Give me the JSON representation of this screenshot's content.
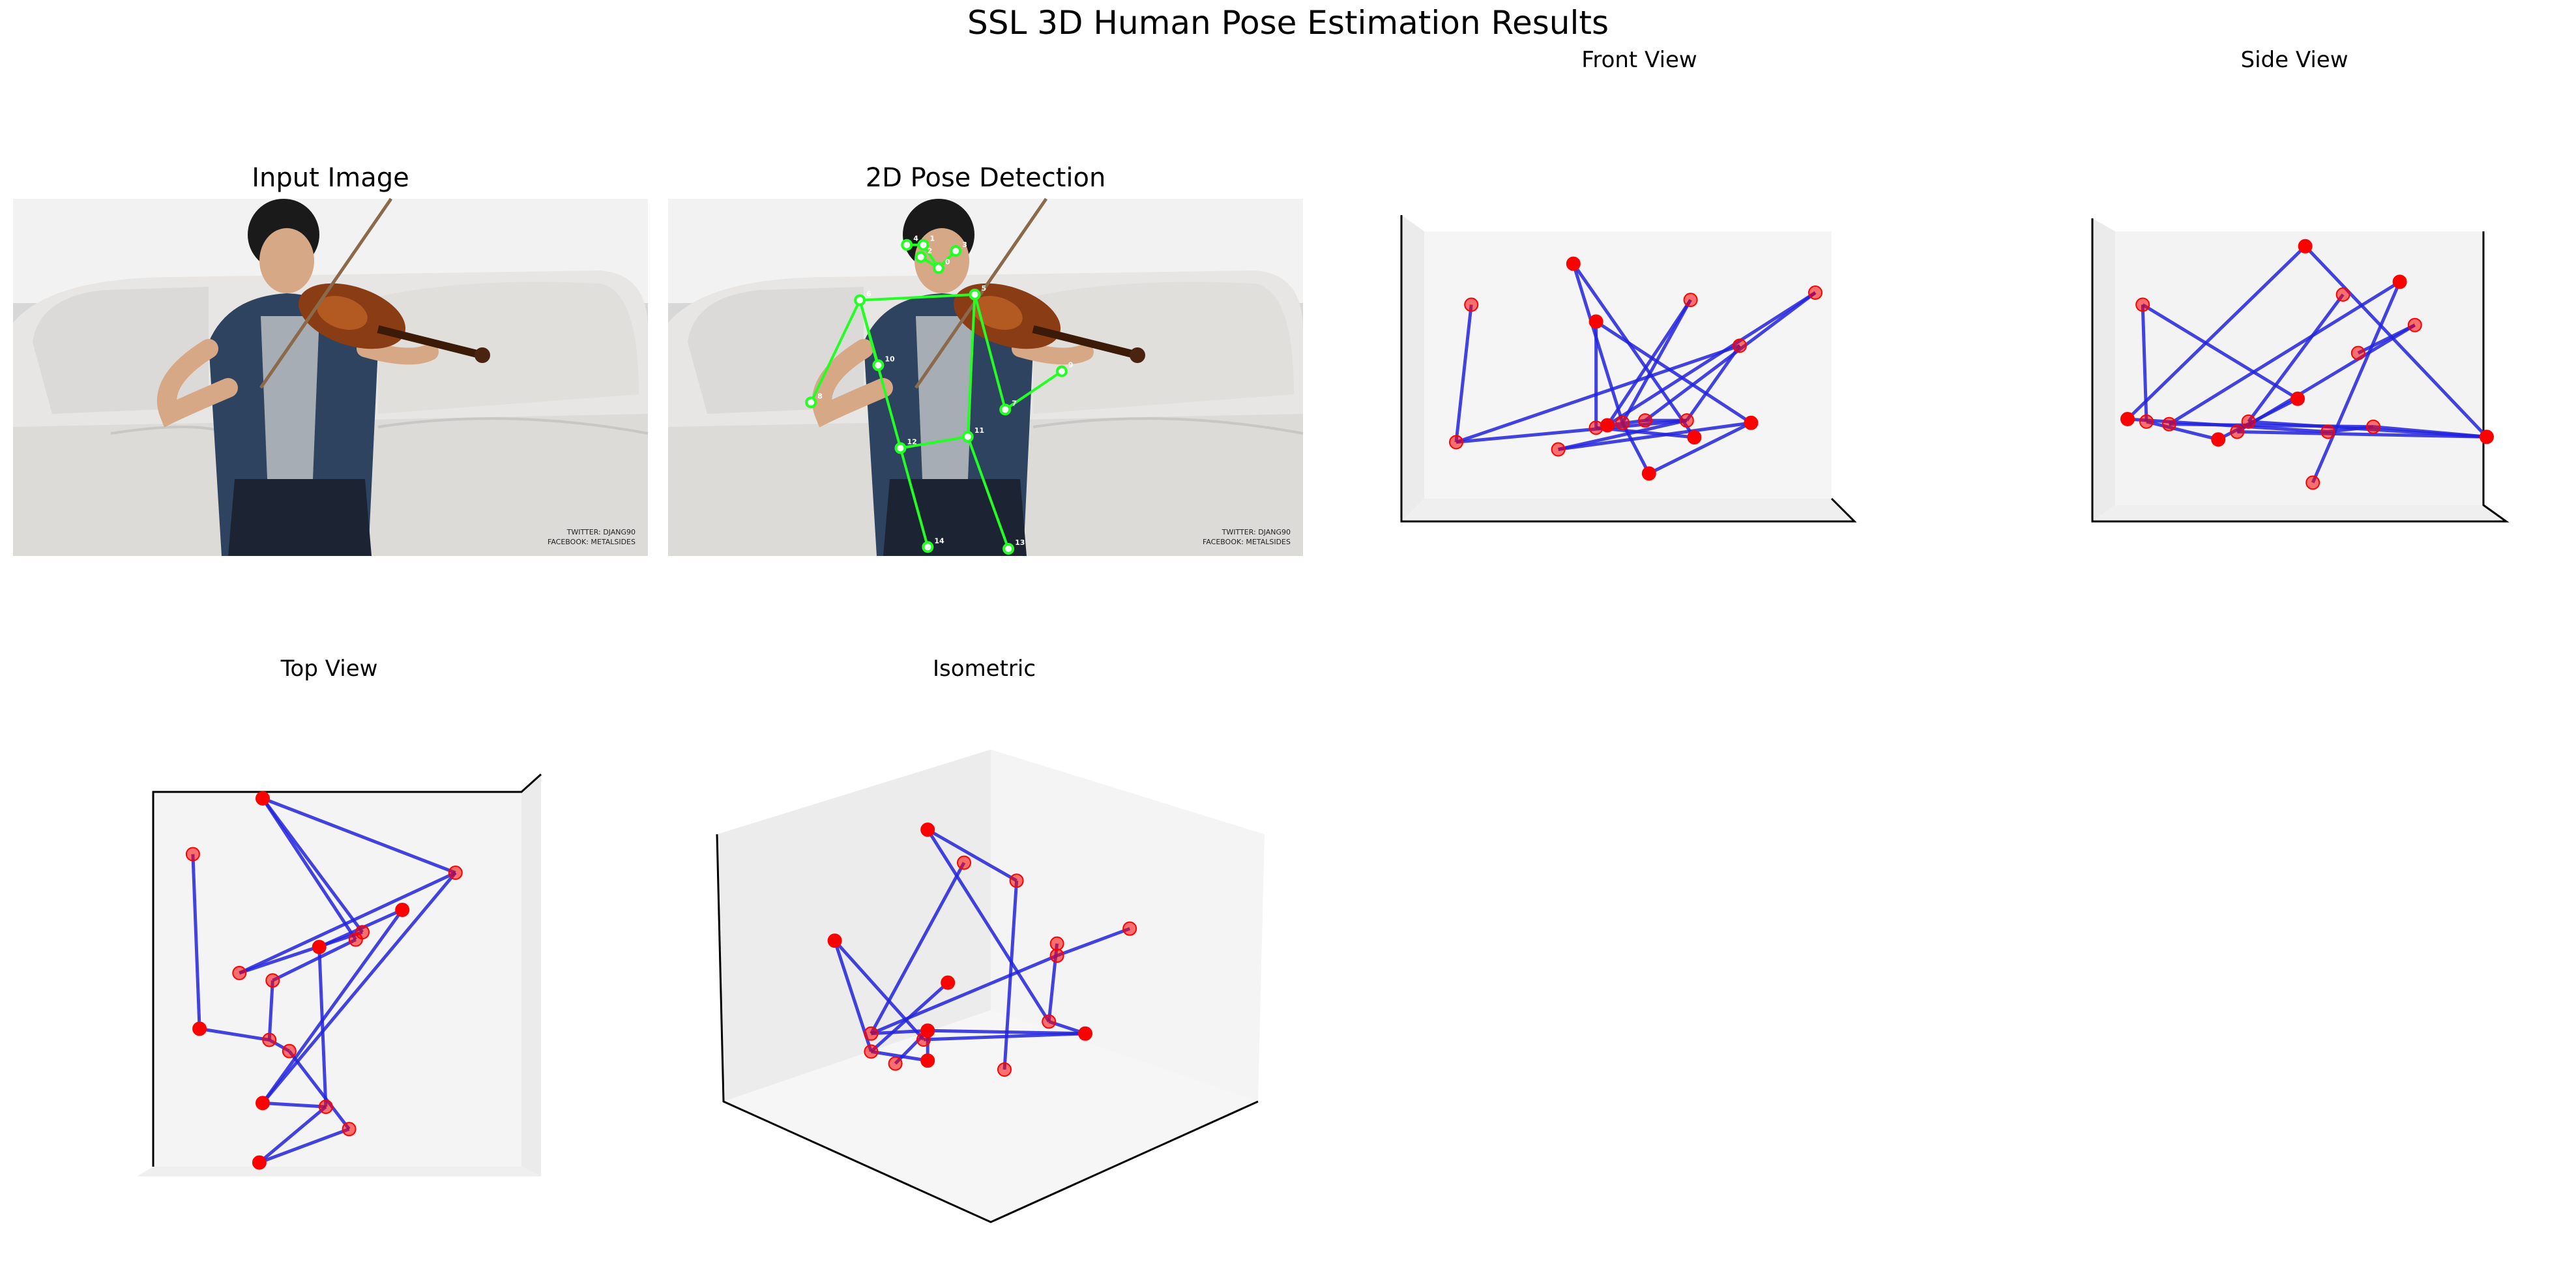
{
  "figure": {
    "title": "SSL 3D Human Pose Estimation Results",
    "panels": {
      "input_image": "Input Image",
      "pose_2d": "2D Pose Detection",
      "front": "Front View",
      "side": "Side View",
      "top": "Top View",
      "isometric": "Isometric"
    },
    "watermark": [
      "TWITTER: DJANG90",
      "FACEBOOK: METALSIDES"
    ]
  },
  "colors": {
    "skeleton_2d": "#22ff22",
    "skeleton_3d": "#2222dd",
    "joint_3d": "#ff0000",
    "pane": "#f2f2f2"
  },
  "chart_data": [
    {
      "type": "image",
      "title": "Input Image",
      "content": "person seated on a white sofa playing a violin"
    },
    {
      "type": "scatter",
      "title": "2D Pose Detection",
      "description_source": "keypoints overlaid on photo",
      "keypoints": [
        {
          "id": 0,
          "x": 0.426,
          "y": 0.194
        },
        {
          "id": 1,
          "x": 0.402,
          "y": 0.129
        },
        {
          "id": 2,
          "x": 0.398,
          "y": 0.163
        },
        {
          "id": 3,
          "x": 0.453,
          "y": 0.146
        },
        {
          "id": 4,
          "x": 0.376,
          "y": 0.129
        },
        {
          "id": 5,
          "x": 0.483,
          "y": 0.268
        },
        {
          "id": 6,
          "x": 0.302,
          "y": 0.284
        },
        {
          "id": 7,
          "x": 0.531,
          "y": 0.59
        },
        {
          "id": 8,
          "x": 0.225,
          "y": 0.57
        },
        {
          "id": 9,
          "x": 0.62,
          "y": 0.483
        },
        {
          "id": 10,
          "x": 0.331,
          "y": 0.466
        },
        {
          "id": 11,
          "x": 0.472,
          "y": 0.666
        },
        {
          "id": 12,
          "x": 0.366,
          "y": 0.698
        },
        {
          "id": 13,
          "x": 0.536,
          "y": 0.98
        },
        {
          "id": 14,
          "x": 0.409,
          "y": 0.975
        }
      ],
      "edges": [
        [
          0,
          1
        ],
        [
          0,
          2
        ],
        [
          0,
          3
        ],
        [
          1,
          4
        ],
        [
          5,
          6
        ],
        [
          5,
          7
        ],
        [
          7,
          9
        ],
        [
          6,
          8
        ],
        [
          6,
          10
        ],
        [
          5,
          11
        ],
        [
          6,
          12
        ],
        [
          11,
          12
        ],
        [
          11,
          13
        ],
        [
          12,
          14
        ]
      ]
    },
    {
      "type": "scatter3d",
      "title": "Front View",
      "points": [
        [
          0.36,
          0.92
        ],
        [
          0.09,
          0.75
        ],
        [
          0.67,
          0.77
        ],
        [
          0.42,
          0.68
        ],
        [
          1.0,
          0.8
        ],
        [
          0.8,
          0.58
        ],
        [
          0.68,
          0.2
        ],
        [
          0.49,
          0.26
        ],
        [
          0.32,
          0.15
        ],
        [
          0.83,
          0.26
        ],
        [
          0.66,
          0.27
        ],
        [
          0.55,
          0.27
        ],
        [
          0.45,
          0.25
        ],
        [
          0.42,
          0.24
        ],
        [
          0.05,
          0.18
        ],
        [
          0.56,
          0.05
        ]
      ],
      "edges": [
        [
          0,
          6
        ],
        [
          0,
          7
        ],
        [
          1,
          14
        ],
        [
          2,
          7
        ],
        [
          2,
          12
        ],
        [
          3,
          13
        ],
        [
          3,
          9
        ],
        [
          4,
          11
        ],
        [
          4,
          12
        ],
        [
          5,
          14
        ],
        [
          5,
          10
        ],
        [
          6,
          13
        ],
        [
          7,
          15
        ],
        [
          8,
          9
        ],
        [
          8,
          10
        ],
        [
          9,
          15
        ],
        [
          10,
          11
        ],
        [
          11,
          12
        ],
        [
          14,
          10
        ]
      ]
    },
    {
      "type": "scatter3d",
      "title": "Side View",
      "points": [
        [
          0.52,
          0.98
        ],
        [
          0.62,
          0.79
        ],
        [
          0.66,
          0.56
        ],
        [
          0.77,
          0.84
        ],
        [
          0.81,
          0.67
        ],
        [
          0.09,
          0.75
        ],
        [
          0.05,
          0.3
        ],
        [
          0.1,
          0.29
        ],
        [
          0.16,
          0.28
        ],
        [
          0.29,
          0.22
        ],
        [
          0.34,
          0.25
        ],
        [
          0.37,
          0.29
        ],
        [
          0.5,
          0.38
        ],
        [
          0.58,
          0.25
        ],
        [
          0.7,
          0.27
        ],
        [
          1.0,
          0.23
        ],
        [
          0.54,
          0.05
        ]
      ],
      "edges": [
        [
          0,
          6
        ],
        [
          0,
          15
        ],
        [
          1,
          11
        ],
        [
          2,
          4
        ],
        [
          3,
          8
        ],
        [
          3,
          16
        ],
        [
          4,
          10
        ],
        [
          5,
          7
        ],
        [
          5,
          12
        ],
        [
          6,
          13
        ],
        [
          7,
          9
        ],
        [
          8,
          14
        ],
        [
          9,
          12
        ],
        [
          10,
          15
        ],
        [
          11,
          15
        ],
        [
          13,
          14
        ],
        [
          14,
          15
        ]
      ]
    },
    {
      "type": "scatter3d",
      "title": "Top View",
      "points": [
        [
          0.3,
          1.0
        ],
        [
          0.09,
          0.85
        ],
        [
          0.88,
          0.8
        ],
        [
          0.72,
          0.7
        ],
        [
          0.58,
          0.62
        ],
        [
          0.6,
          0.64
        ],
        [
          0.47,
          0.6
        ],
        [
          0.23,
          0.53
        ],
        [
          0.33,
          0.51
        ],
        [
          0.11,
          0.38
        ],
        [
          0.32,
          0.35
        ],
        [
          0.38,
          0.32
        ],
        [
          0.3,
          0.18
        ],
        [
          0.49,
          0.17
        ],
        [
          0.56,
          0.11
        ],
        [
          0.29,
          0.02
        ]
      ],
      "edges": [
        [
          0,
          2
        ],
        [
          0,
          4
        ],
        [
          0,
          5
        ],
        [
          1,
          9
        ],
        [
          2,
          7
        ],
        [
          2,
          12
        ],
        [
          3,
          6
        ],
        [
          3,
          12
        ],
        [
          4,
          8
        ],
        [
          5,
          7
        ],
        [
          6,
          13
        ],
        [
          8,
          10
        ],
        [
          9,
          10
        ],
        [
          10,
          11
        ],
        [
          11,
          14
        ],
        [
          12,
          13
        ],
        [
          13,
          15
        ],
        [
          14,
          15
        ]
      ]
    },
    {
      "type": "scatter3d",
      "title": "Isometric",
      "points": [
        [
          0.36,
          0.95
        ],
        [
          0.45,
          0.84
        ],
        [
          0.58,
          0.78
        ],
        [
          0.13,
          0.58
        ],
        [
          0.68,
          0.57
        ],
        [
          0.86,
          0.62
        ],
        [
          0.41,
          0.44
        ],
        [
          0.68,
          0.53
        ],
        [
          0.66,
          0.31
        ],
        [
          0.75,
          0.27
        ],
        [
          0.22,
          0.27
        ],
        [
          0.22,
          0.21
        ],
        [
          0.36,
          0.28
        ],
        [
          0.35,
          0.25
        ],
        [
          0.28,
          0.17
        ],
        [
          0.36,
          0.18
        ],
        [
          0.55,
          0.15
        ]
      ],
      "edges": [
        [
          0,
          8
        ],
        [
          0,
          2
        ],
        [
          1,
          10
        ],
        [
          3,
          13
        ],
        [
          4,
          8
        ],
        [
          5,
          7
        ],
        [
          7,
          10
        ],
        [
          2,
          16
        ],
        [
          3,
          11
        ],
        [
          6,
          11
        ],
        [
          8,
          9
        ],
        [
          9,
          12
        ],
        [
          10,
          12
        ],
        [
          11,
          15
        ],
        [
          12,
          14
        ],
        [
          13,
          9
        ],
        [
          15,
          12
        ]
      ]
    }
  ]
}
